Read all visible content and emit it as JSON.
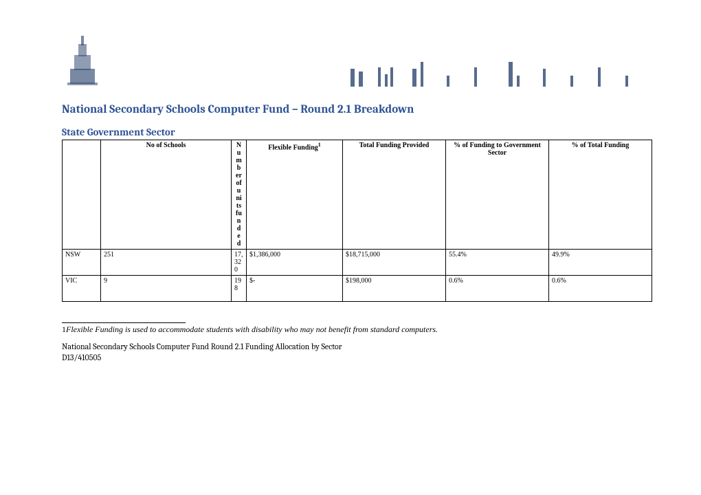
{
  "heading": "National Secondary Schools Computer Fund – Round 2.1 Breakdown",
  "section_title": "State Government Sector",
  "headers": {
    "state": "",
    "schools": "No of Schools",
    "units": "Number of units funded",
    "flex": "Flexible Funding",
    "flex_sup": "1",
    "total": "Total Funding Provided",
    "pct_gov": "% of Funding to Government Sector",
    "pct_total": "% of Total Funding"
  },
  "rows": [
    {
      "state": "NSW",
      "schools": "251",
      "units": "17,320",
      "flex": "$1,386,000",
      "total": "$18,715,000",
      "pct_gov": "55.4%",
      "pct_total": "49.9%"
    },
    {
      "state": "VIC",
      "schools": "9",
      "units": "198",
      "flex": "$-",
      "total": "$198,000",
      "pct_gov": "0.6%",
      "pct_total": "0.6%"
    }
  ],
  "footnote": {
    "num": "1",
    "text": "Flexible Funding is used to accommodate students with disability who may not benefit from standard computers."
  },
  "footer": {
    "line1": "National Secondary Schools Computer Fund Round 2.1 Funding Allocation by Sector",
    "line2": "D13/410505"
  },
  "colors": {
    "heading": "#2e5395",
    "border": "#000000",
    "text": "#000000",
    "logo": "#1f3a66"
  }
}
